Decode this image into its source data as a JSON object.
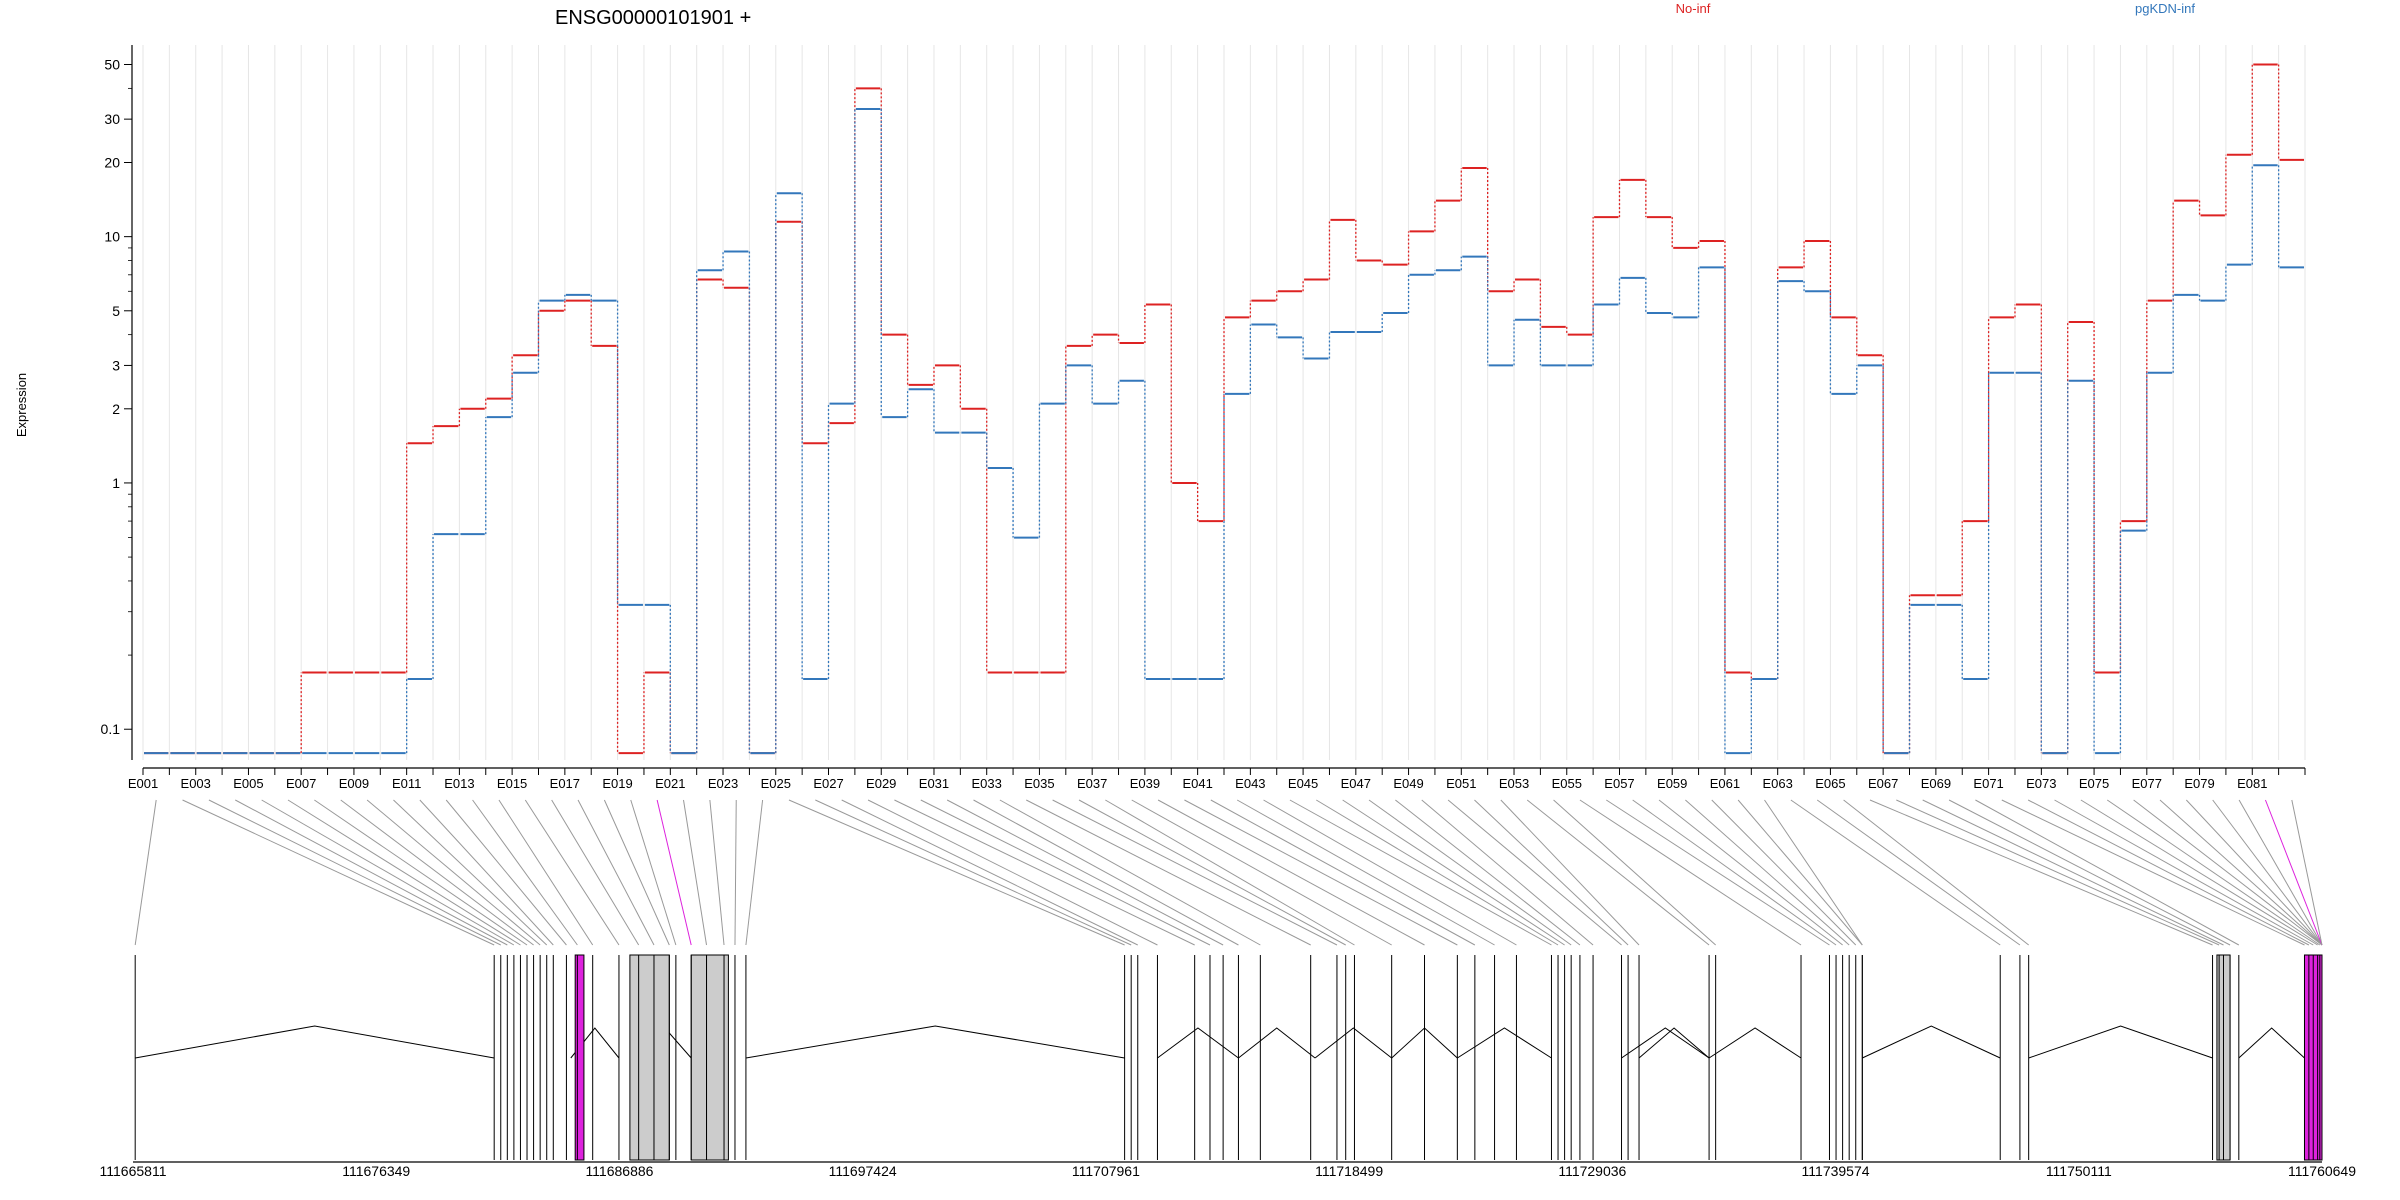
{
  "chart_data": {
    "type": "line",
    "title": "ENSG00000101901 +",
    "xlabel": "",
    "ylabel": "Expression",
    "y_scale": "log",
    "ylim": [
      0.075,
      60
    ],
    "y_ticks": [
      0.1,
      1,
      2,
      3,
      5,
      10,
      20,
      30,
      50
    ],
    "y_tick_labels": [
      "0.1",
      "1",
      "2",
      "3",
      "5",
      "10",
      "20",
      "30",
      "50"
    ],
    "grid": "vertical",
    "legend_placement": "top",
    "colors": {
      "No-inf": "#dd2222",
      "pgKDN-inf": "#3377bb",
      "highlight": "#dd22dd",
      "gene_box": "#cccccc"
    },
    "categories": [
      "E001",
      "E002",
      "E003",
      "E004",
      "E005",
      "E006",
      "E007",
      "E008",
      "E009",
      "E010",
      "E011",
      "E012",
      "E013",
      "E014",
      "E015",
      "E016",
      "E017",
      "E018",
      "E019",
      "E020",
      "E021",
      "E022",
      "E023",
      "E024",
      "E025",
      "E026",
      "E027",
      "E028",
      "E029",
      "E030",
      "E031",
      "E032",
      "E033",
      "E034",
      "E035",
      "E036",
      "E037",
      "E038",
      "E039",
      "E040",
      "E041",
      "E042",
      "E043",
      "E044",
      "E045",
      "E046",
      "E047",
      "E048",
      "E049",
      "E050",
      "E051",
      "E052",
      "E053",
      "E054",
      "E055",
      "E056",
      "E057",
      "E058",
      "E059",
      "E060",
      "E061",
      "E062",
      "E063",
      "E064",
      "E065",
      "E066",
      "E067",
      "E068",
      "E069",
      "E070",
      "E071",
      "E072",
      "E073",
      "E074",
      "E075",
      "E076",
      "E077",
      "E078",
      "E079",
      "E080",
      "E081",
      "E082"
    ],
    "labeled_categories": [
      "E001",
      "E003",
      "E005",
      "E007",
      "E009",
      "E011",
      "E013",
      "E015",
      "E017",
      "E019",
      "E021",
      "E023",
      "E025",
      "E027",
      "E029",
      "E031",
      "E033",
      "E035",
      "E037",
      "E039",
      "E041",
      "E043",
      "E045",
      "E047",
      "E049",
      "E051",
      "E053",
      "E055",
      "E057",
      "E059",
      "E061",
      "E063",
      "E065",
      "E067",
      "E069",
      "E071",
      "E073",
      "E075",
      "E077",
      "E079",
      "E081"
    ],
    "series": [
      {
        "name": "No-inf",
        "values": [
          0.08,
          0.08,
          0.08,
          0.08,
          0.08,
          0.08,
          0.17,
          0.17,
          0.17,
          0.17,
          1.45,
          1.7,
          2.0,
          2.2,
          3.3,
          5.0,
          5.5,
          3.6,
          0.08,
          0.17,
          0.08,
          6.7,
          6.2,
          0.08,
          11.5,
          1.45,
          1.75,
          40,
          4.0,
          2.5,
          3.0,
          2.0,
          0.17,
          0.17,
          0.17,
          3.6,
          4.0,
          3.7,
          5.3,
          1.0,
          0.7,
          4.7,
          5.5,
          6.0,
          6.7,
          11.7,
          8.0,
          7.7,
          10.5,
          14,
          19,
          6.0,
          6.7,
          4.3,
          4.0,
          12,
          17,
          12,
          9.0,
          9.6,
          0.17,
          0.16,
          7.5,
          9.6,
          4.7,
          3.3,
          0.08,
          0.35,
          0.35,
          0.7,
          4.7,
          5.3,
          0.08,
          4.5,
          0.17,
          0.7,
          5.5,
          14,
          12.2,
          21.5,
          50,
          20.5
        ]
      },
      {
        "name": "pgKDN-inf",
        "values": [
          0.08,
          0.08,
          0.08,
          0.08,
          0.08,
          0.08,
          0.08,
          0.08,
          0.08,
          0.08,
          0.16,
          0.62,
          0.62,
          1.85,
          2.8,
          5.5,
          5.8,
          5.5,
          0.32,
          0.32,
          0.08,
          7.3,
          8.7,
          0.08,
          15,
          0.16,
          2.1,
          33,
          1.85,
          2.4,
          1.6,
          1.6,
          1.15,
          0.6,
          2.1,
          3.0,
          2.1,
          2.6,
          0.16,
          0.16,
          0.16,
          2.3,
          4.4,
          3.9,
          3.2,
          4.1,
          4.1,
          4.9,
          7.0,
          7.3,
          8.3,
          3.0,
          4.6,
          3.0,
          3.0,
          5.3,
          6.8,
          4.9,
          4.7,
          7.5,
          0.08,
          0.16,
          6.6,
          6.0,
          2.3,
          3.0,
          0.08,
          0.32,
          0.32,
          0.16,
          2.8,
          2.8,
          0.08,
          2.6,
          0.08,
          0.64,
          2.8,
          5.8,
          5.5,
          7.7,
          19.5,
          7.5
        ]
      }
    ],
    "gene_model": {
      "coordinate_labels": [
        "111665811",
        "111676349",
        "111686886",
        "111697424",
        "111707961",
        "111718499",
        "111729036",
        "111739574",
        "111750111",
        "111760649"
      ]
    }
  }
}
